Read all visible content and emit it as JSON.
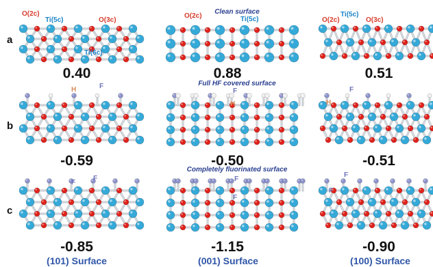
{
  "row_labels": [
    "a",
    "b",
    "c"
  ],
  "banners": {
    "clean": "Clean surface",
    "hf": "Full HF covered surface",
    "fluorinated": "Completely fluorinated surface"
  },
  "values": {
    "a": [
      "0.40",
      "0.88",
      "0.51"
    ],
    "b": [
      "-0.59",
      "-0.50",
      "-0.51"
    ],
    "c": [
      "-0.85",
      "-1.15",
      "-0.90"
    ]
  },
  "surfaces": [
    "(101) Surface",
    "(001) Surface",
    "(100) Surface"
  ],
  "atom_labels": {
    "o2c": "O(2c)",
    "ti5c": "Ti(5c)",
    "o3c": "O(3c)",
    "ti6c": "Ti(6c)",
    "h": "H",
    "f": "F"
  },
  "colors": {
    "ti": "#35a9d8",
    "o": "#e0221b",
    "f": "#8d93cc",
    "h": "#f0f0f0",
    "bond": "#b9bfc6",
    "banner": "#2a3f8f",
    "surface_label": "#2f56a8"
  }
}
